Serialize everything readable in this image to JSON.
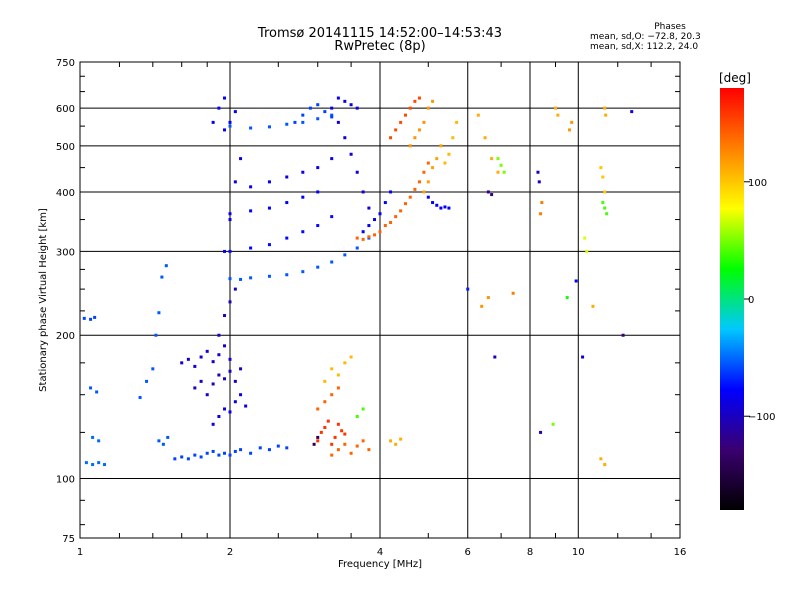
{
  "header": {
    "title_line1": "Tromsø 20141115 14:52:00–14:53:43",
    "title_line2": "RwPretec (8p)"
  },
  "phase_box": {
    "heading": "Phases",
    "line1": "mean, sd,O: −72.8, 20.3",
    "line2": "mean, sd,X: 112.2, 24.0"
  },
  "chart_data": {
    "type": "scatter",
    "xlabel": "Frequency [MHz]",
    "ylabel": "Stationary phase Virtual Height [km]",
    "x_scale": "log",
    "y_scale": "log",
    "xlim": [
      1,
      16
    ],
    "ylim": [
      75,
      750
    ],
    "x_ticks": [
      1,
      2,
      4,
      6,
      8,
      10,
      16
    ],
    "x_tick_labels": [
      "1",
      "2",
      "4",
      "6",
      "8",
      "10",
      "16"
    ],
    "y_ticks": [
      75,
      100,
      200,
      300,
      400,
      500,
      600,
      750
    ],
    "y_tick_labels": [
      "75",
      "100",
      "200",
      "300",
      "400",
      "500",
      "600",
      "750"
    ],
    "grid": true,
    "colorbar": {
      "label": "[deg]",
      "range": [
        -180,
        180
      ],
      "tick_values": [
        100,
        0,
        -100
      ],
      "tick_labels": [
        "100",
        "0",
        "−100"
      ],
      "colormap": [
        "#000000",
        "#3a0070",
        "#0000ff",
        "#00c8ff",
        "#00ff00",
        "#ffff00",
        "#ff8000",
        "#ff0000"
      ]
    },
    "series": [
      {
        "x": [
          1.03,
          1.06,
          1.09,
          1.12
        ],
        "y": [
          108,
          107,
          108,
          107
        ],
        "phase": -50
      },
      {
        "x": [
          1.02,
          1.05,
          1.07
        ],
        "y": [
          217,
          216,
          218
        ],
        "phase": -60
      },
      {
        "x": [
          1.05,
          1.08
        ],
        "y": [
          155,
          152
        ],
        "phase": -55
      },
      {
        "x": [
          1.06,
          1.09
        ],
        "y": [
          122,
          120
        ],
        "phase": -50
      },
      {
        "x": [
          1.32,
          1.36,
          1.4
        ],
        "y": [
          148,
          160,
          170
        ],
        "phase": -55
      },
      {
        "x": [
          1.42,
          1.44,
          1.46,
          1.49
        ],
        "y": [
          200,
          223,
          265,
          280
        ],
        "phase": -55
      },
      {
        "x": [
          1.44,
          1.47,
          1.5
        ],
        "y": [
          120,
          118,
          122
        ],
        "phase": -55
      },
      {
        "x": [
          1.55,
          1.6,
          1.65,
          1.7,
          1.75,
          1.8,
          1.85
        ],
        "y": [
          110,
          111,
          110,
          112,
          111,
          113,
          114
        ],
        "phase": -60
      },
      {
        "x": [
          1.9,
          1.95,
          2.0,
          2.05,
          2.1,
          2.2,
          2.3,
          2.4,
          2.5,
          2.6
        ],
        "y": [
          112,
          113,
          112,
          114,
          115,
          113,
          116,
          115,
          117,
          116
        ],
        "phase": -60
      },
      {
        "x": [
          1.6,
          1.65,
          1.7,
          1.75,
          1.8,
          1.85,
          1.9,
          1.95,
          2.0
        ],
        "y": [
          175,
          178,
          172,
          180,
          185,
          176,
          182,
          190,
          178
        ],
        "phase": -95
      },
      {
        "x": [
          1.7,
          1.75,
          1.8,
          1.85,
          1.9,
          1.95,
          2.0,
          2.05,
          2.1
        ],
        "y": [
          155,
          160,
          150,
          158,
          165,
          162,
          168,
          160,
          170
        ],
        "phase": -100
      },
      {
        "x": [
          1.85,
          1.9,
          1.95,
          2.0,
          2.05,
          2.1,
          2.15
        ],
        "y": [
          130,
          135,
          140,
          138,
          145,
          150,
          142
        ],
        "phase": -85
      },
      {
        "x": [
          1.9,
          1.95,
          2.0,
          2.05
        ],
        "y": [
          200,
          220,
          235,
          250
        ],
        "phase": -100
      },
      {
        "x": [
          1.95,
          2.0,
          2.05,
          2.1
        ],
        "y": [
          300,
          350,
          420,
          470
        ],
        "phase": -85
      },
      {
        "x": [
          1.95,
          2.0,
          2.05
        ],
        "y": [
          540,
          560,
          590
        ],
        "phase": -80
      },
      {
        "x": [
          1.85,
          1.9,
          1.95
        ],
        "y": [
          560,
          600,
          630
        ],
        "phase": -80
      },
      {
        "x": [
          2.0,
          2.1,
          2.2,
          2.4,
          2.6,
          2.8,
          3.0,
          3.2,
          3.4,
          3.6,
          3.8
        ],
        "y": [
          263,
          262,
          264,
          266,
          268,
          272,
          278,
          285,
          295,
          305,
          320
        ],
        "phase": -55
      },
      {
        "x": [
          2.0,
          2.2,
          2.4,
          2.6,
          2.8,
          3.0,
          3.2
        ],
        "y": [
          300,
          305,
          310,
          320,
          330,
          340,
          355
        ],
        "phase": -75
      },
      {
        "x": [
          2.0,
          2.2,
          2.4,
          2.6,
          2.8,
          3.0
        ],
        "y": [
          360,
          365,
          370,
          380,
          390,
          400
        ],
        "phase": -80
      },
      {
        "x": [
          2.2,
          2.4,
          2.6,
          2.8,
          3.0,
          3.2
        ],
        "y": [
          410,
          420,
          430,
          440,
          450,
          470
        ],
        "phase": -85
      },
      {
        "x": [
          2.0,
          2.2,
          2.4,
          2.6,
          2.8,
          3.0,
          3.2
        ],
        "y": [
          550,
          545,
          548,
          555,
          560,
          570,
          580
        ],
        "phase": -55
      },
      {
        "x": [
          2.7,
          2.8,
          2.9,
          3.0,
          3.1,
          3.2
        ],
        "y": [
          560,
          580,
          600,
          610,
          590,
          575
        ],
        "phase": -60
      },
      {
        "x": [
          3.2,
          3.3,
          3.4,
          3.5,
          3.6,
          3.7,
          3.8
        ],
        "y": [
          600,
          560,
          520,
          480,
          440,
          400,
          370
        ],
        "phase": -90
      },
      {
        "x": [
          3.3,
          3.4,
          3.5,
          3.6
        ],
        "y": [
          630,
          620,
          610,
          600
        ],
        "phase": -85
      },
      {
        "x": [
          3.7,
          3.8,
          3.9,
          4.0,
          4.1,
          4.2
        ],
        "y": [
          330,
          340,
          350,
          360,
          380,
          400
        ],
        "phase": -80
      },
      {
        "x": [
          3.6,
          3.7,
          3.8,
          3.9,
          4.0,
          4.1,
          4.2,
          4.3,
          4.4,
          4.5,
          4.6,
          4.7,
          4.8,
          4.9,
          5.0
        ],
        "y": [
          320,
          318,
          322,
          325,
          330,
          340,
          345,
          355,
          365,
          378,
          390,
          405,
          420,
          440,
          460
        ],
        "phase": 140
      },
      {
        "x": [
          4.2,
          4.3,
          4.4,
          4.5,
          4.6,
          4.7,
          4.8
        ],
        "y": [
          520,
          540,
          560,
          580,
          600,
          620,
          630
        ],
        "phase": 150
      },
      {
        "x": [
          4.6,
          4.7,
          4.8,
          4.9,
          5.0,
          5.1
        ],
        "y": [
          500,
          520,
          540,
          560,
          600,
          620
        ],
        "phase": 120
      },
      {
        "x": [
          5.0,
          5.1,
          5.2,
          5.3,
          5.4,
          5.5
        ],
        "y": [
          390,
          380,
          375,
          370,
          372,
          370
        ],
        "phase": -80
      },
      {
        "x": [
          4.9,
          5.0,
          5.1,
          5.2,
          5.3
        ],
        "y": [
          400,
          420,
          450,
          470,
          500
        ],
        "phase": 115
      },
      {
        "x": [
          5.4,
          5.5,
          5.6,
          5.7
        ],
        "y": [
          460,
          480,
          520,
          560
        ],
        "phase": 105
      },
      {
        "x": [
          3.0,
          3.05,
          3.1,
          3.15,
          3.2,
          3.25,
          3.3,
          3.35,
          3.4
        ],
        "y": [
          120,
          125,
          128,
          132,
          118,
          122,
          130,
          126,
          124
        ],
        "phase": 160
      },
      {
        "x": [
          3.2,
          3.3,
          3.4,
          3.5,
          3.6,
          3.7,
          3.8
        ],
        "y": [
          112,
          115,
          118,
          113,
          117,
          120,
          115
        ],
        "phase": 140
      },
      {
        "x": [
          3.0,
          3.1,
          3.2,
          3.3
        ],
        "y": [
          140,
          145,
          150,
          155
        ],
        "phase": 140
      },
      {
        "x": [
          3.1,
          3.2,
          3.3,
          3.4,
          3.5
        ],
        "y": [
          160,
          170,
          165,
          175,
          180
        ],
        "phase": 105
      },
      {
        "x": [
          3.6,
          3.7
        ],
        "y": [
          135,
          140
        ],
        "phase": 40
      },
      {
        "x": [
          2.95,
          3.0
        ],
        "y": [
          118,
          122
        ],
        "phase": -140
      },
      {
        "x": [
          4.2,
          4.3,
          4.4
        ],
        "y": [
          120,
          118,
          121
        ],
        "phase": 110
      },
      {
        "x": [
          6.3,
          6.5,
          6.7,
          6.9
        ],
        "y": [
          580,
          520,
          470,
          440
        ],
        "phase": 110
      },
      {
        "x": [
          6.9,
          7.0,
          7.1
        ],
        "y": [
          470,
          455,
          440
        ],
        "phase": 50
      },
      {
        "x": [
          6.6,
          6.7
        ],
        "y": [
          400,
          395
        ],
        "phase": -120
      },
      {
        "x": [
          8.3,
          8.35
        ],
        "y": [
          440,
          420
        ],
        "phase": -100
      },
      {
        "x": [
          8.4,
          8.45
        ],
        "y": [
          360,
          380
        ],
        "phase": 130
      },
      {
        "x": [
          9.0,
          9.1
        ],
        "y": [
          600,
          580
        ],
        "phase": 110
      },
      {
        "x": [
          9.6,
          9.7
        ],
        "y": [
          540,
          560
        ],
        "phase": 120
      },
      {
        "x": [
          10.3,
          10.4
        ],
        "y": [
          320,
          300
        ],
        "phase": 70
      },
      {
        "x": [
          11.1,
          11.2,
          11.3
        ],
        "y": [
          450,
          430,
          400
        ],
        "phase": 100
      },
      {
        "x": [
          11.2,
          11.3,
          11.4
        ],
        "y": [
          380,
          370,
          360
        ],
        "phase": 40
      },
      {
        "x": [
          11.3,
          11.35
        ],
        "y": [
          600,
          580
        ],
        "phase": 110
      },
      {
        "x": [
          11.1,
          11.3
        ],
        "y": [
          110,
          107
        ],
        "phase": 110
      },
      {
        "x": [
          6.4,
          6.6
        ],
        "y": [
          230,
          240
        ],
        "phase": 120
      },
      {
        "x": [
          6.8
        ],
        "y": [
          180
        ],
        "phase": -100
      },
      {
        "x": [
          7.4
        ],
        "y": [
          245
        ],
        "phase": 130
      },
      {
        "x": [
          8.4
        ],
        "y": [
          125
        ],
        "phase": -100
      },
      {
        "x": [
          8.9
        ],
        "y": [
          130
        ],
        "phase": 50
      },
      {
        "x": [
          9.5
        ],
        "y": [
          240
        ],
        "phase": 30
      },
      {
        "x": [
          9.9
        ],
        "y": [
          260
        ],
        "phase": -80
      },
      {
        "x": [
          10.2
        ],
        "y": [
          180
        ],
        "phase": -90
      },
      {
        "x": [
          10.7
        ],
        "y": [
          230
        ],
        "phase": 110
      },
      {
        "x": [
          12.3
        ],
        "y": [
          200
        ],
        "phase": -130
      },
      {
        "x": [
          12.8
        ],
        "y": [
          590
        ],
        "phase": -90
      },
      {
        "x": [
          6.0
        ],
        "y": [
          250
        ],
        "phase": -70
      }
    ]
  }
}
